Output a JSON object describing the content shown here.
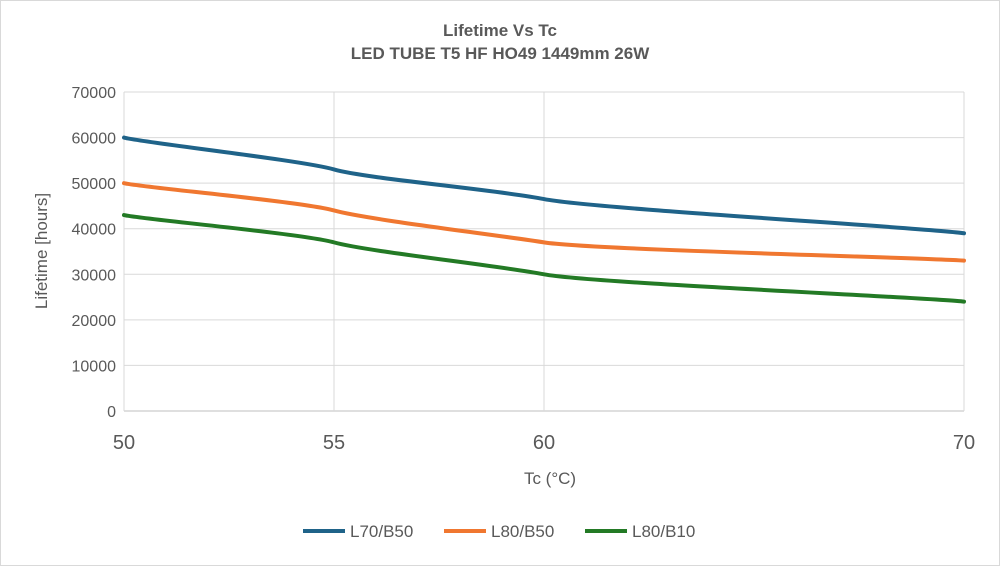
{
  "chart_data": {
    "type": "line",
    "title": "Lifetime Vs Tc",
    "subtitle": "LED TUBE T5 HF HO49 1449mm 26W",
    "xlabel": "Tc (°C)",
    "ylabel": "Lifetime [hours]",
    "x": [
      50,
      55,
      60,
      70
    ],
    "xlim": [
      50,
      70
    ],
    "xticks": [
      50,
      55,
      60,
      70
    ],
    "ylim": [
      0,
      70000
    ],
    "yticks": [
      0,
      10000,
      20000,
      30000,
      40000,
      50000,
      60000,
      70000
    ],
    "grid": true,
    "legend_position": "bottom",
    "series": [
      {
        "name": "L70/B50",
        "color": "#1f6389",
        "values": [
          60000,
          53000,
          46500,
          39000
        ]
      },
      {
        "name": "L80/B50",
        "color": "#f07730",
        "values": [
          50000,
          44000,
          37000,
          33000
        ]
      },
      {
        "name": "L80/B10",
        "color": "#237a25",
        "values": [
          43000,
          37000,
          30000,
          24000
        ]
      }
    ]
  }
}
